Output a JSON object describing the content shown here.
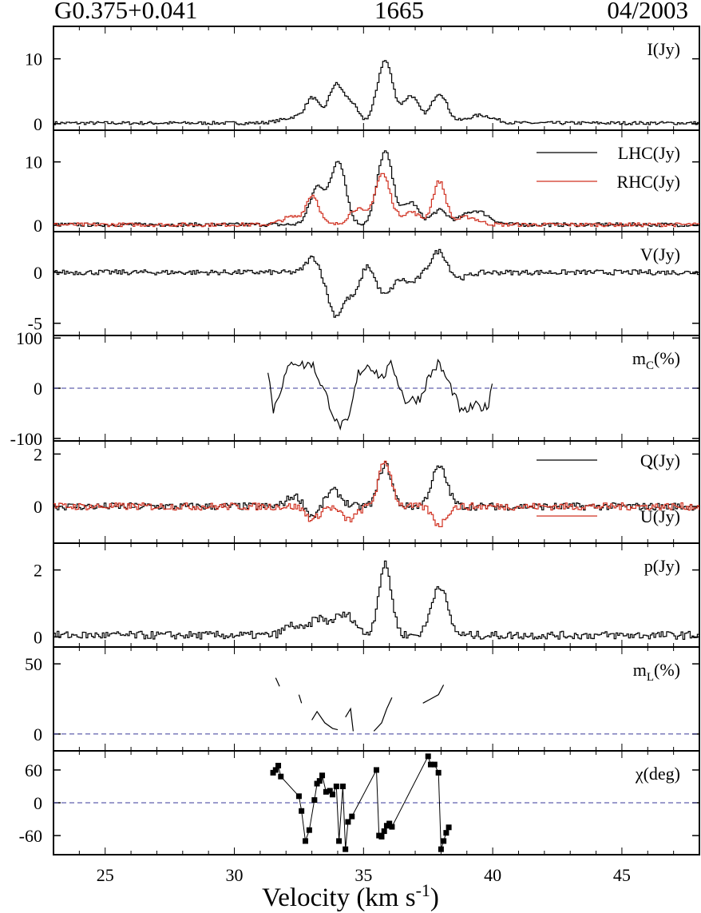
{
  "header": {
    "source": "G0.375+0.041",
    "frequency": "1665",
    "date": "04/2003"
  },
  "chart_data": {
    "type": "line",
    "xlabel": "Velocity (km s",
    "xlabel_sup": "-1",
    "xlabel_close": ")",
    "xlim": [
      23,
      48
    ],
    "xticks": [
      25,
      30,
      35,
      40,
      45
    ],
    "colors": {
      "primary": "#000000",
      "secondary": "#d03020",
      "zero": "#3a3a9a"
    },
    "panels": [
      {
        "id": "I",
        "label": "I(Jy)",
        "ylim": [
          -1,
          15
        ],
        "yticks": [
          0,
          10
        ],
        "series": [
          {
            "name": "I(Jy)",
            "color": "#000000",
            "base": 0.1,
            "noise": 0.25,
            "peaks": [
              [
                33.0,
                3.2,
                0.25
              ],
              [
                33.9,
                5.8,
                0.28
              ],
              [
                34.5,
                2.8,
                0.25
              ],
              [
                35.8,
                9.6,
                0.3
              ],
              [
                36.8,
                4.2,
                0.3
              ],
              [
                37.9,
                4.6,
                0.3
              ],
              [
                39.5,
                1.2,
                0.5
              ],
              [
                32.5,
                1.0,
                0.6
              ]
            ]
          }
        ]
      },
      {
        "id": "LHCRHC",
        "label": "",
        "ylim": [
          -1,
          15
        ],
        "yticks": [
          0,
          10
        ],
        "series": [
          {
            "name": "LHC(Jy)",
            "color": "#000000",
            "base": 0.1,
            "noise": 0.3,
            "peaks": [
              [
                33.2,
                6.0,
                0.3
              ],
              [
                34.0,
                10.0,
                0.28
              ],
              [
                35.8,
                11.5,
                0.3
              ],
              [
                36.8,
                3.5,
                0.3
              ],
              [
                37.9,
                2.2,
                0.3
              ],
              [
                39.3,
                2.2,
                0.5
              ]
            ]
          },
          {
            "name": "RHC(Jy)",
            "color": "#d03020",
            "base": 0.1,
            "noise": 0.3,
            "peaks": [
              [
                32.2,
                1.2,
                0.4
              ],
              [
                33.0,
                4.5,
                0.25
              ],
              [
                34.7,
                2.5,
                0.3
              ],
              [
                35.7,
                8.0,
                0.3
              ],
              [
                36.8,
                2.0,
                0.35
              ],
              [
                37.9,
                6.8,
                0.25
              ],
              [
                39.0,
                1.2,
                0.4
              ]
            ]
          }
        ]
      },
      {
        "id": "V",
        "label": "V(Jy)",
        "ylim": [
          -6.2,
          4.0
        ],
        "yticks": [
          -5,
          0
        ],
        "series": [
          {
            "name": "V(Jy)",
            "color": "#000000",
            "base": 0.0,
            "noise": 0.25,
            "peaks": [
              [
                33.0,
                1.5,
                0.25
              ],
              [
                33.9,
                -4.2,
                0.3
              ],
              [
                34.6,
                -2.0,
                0.25
              ],
              [
                35.1,
                1.0,
                0.2
              ],
              [
                35.8,
                -2.2,
                0.3
              ],
              [
                36.8,
                -1.0,
                0.3
              ],
              [
                37.9,
                2.2,
                0.3
              ],
              [
                38.6,
                -0.6,
                0.4
              ]
            ]
          }
        ]
      },
      {
        "id": "mc",
        "label": "m",
        "label_sub": "C",
        "label_close": "(%)",
        "ylim": [
          -105,
          105
        ],
        "yticks": [
          -100,
          0,
          100
        ],
        "zero": true,
        "series": [
          {
            "name": "m_C(%)",
            "color": "#000000",
            "xrange": [
              31.3,
              40.0
            ],
            "noise": 10,
            "keys": [
              [
                31.3,
                40
              ],
              [
                31.5,
                -45
              ],
              [
                32.0,
                30
              ],
              [
                32.3,
                55
              ],
              [
                32.7,
                45
              ],
              [
                33.0,
                50
              ],
              [
                33.6,
                -20
              ],
              [
                34.0,
                -75
              ],
              [
                34.4,
                -70
              ],
              [
                34.8,
                30
              ],
              [
                35.2,
                48
              ],
              [
                35.7,
                20
              ],
              [
                36.1,
                48
              ],
              [
                36.6,
                -25
              ],
              [
                37.2,
                -20
              ],
              [
                37.5,
                20
              ],
              [
                37.9,
                50
              ],
              [
                38.4,
                0
              ],
              [
                38.8,
                -50
              ],
              [
                39.3,
                -35
              ],
              [
                39.8,
                -40
              ],
              [
                40.0,
                20
              ]
            ]
          }
        ]
      },
      {
        "id": "QU",
        "label": "",
        "ylim": [
          -1.4,
          2.5
        ],
        "yticks": [
          0,
          2
        ],
        "series": [
          {
            "name": "Q(Jy)",
            "color": "#000000",
            "base": 0.0,
            "noise": 0.14,
            "peaks": [
              [
                32.3,
                0.4,
                0.3
              ],
              [
                33.0,
                -0.4,
                0.25
              ],
              [
                33.8,
                0.6,
                0.3
              ],
              [
                35.8,
                1.6,
                0.25
              ],
              [
                37.9,
                1.5,
                0.3
              ]
            ]
          },
          {
            "name": "U(Jy)",
            "color": "#d03020",
            "base": 0.0,
            "noise": 0.14,
            "peaks": [
              [
                33.0,
                -0.5,
                0.25
              ],
              [
                34.4,
                -0.5,
                0.3
              ],
              [
                35.8,
                1.7,
                0.25
              ],
              [
                37.9,
                -0.7,
                0.25
              ]
            ]
          }
        ]
      },
      {
        "id": "p",
        "label": "p(Jy)",
        "ylim": [
          -0.3,
          2.8
        ],
        "yticks": [
          0,
          2
        ],
        "series": [
          {
            "name": "p(Jy)",
            "color": "#000000",
            "base": 0.05,
            "noise": 0.12,
            "peaks": [
              [
                32.2,
                0.3,
                0.3
              ],
              [
                33.2,
                0.5,
                0.3
              ],
              [
                34.0,
                0.5,
                0.3
              ],
              [
                34.5,
                0.4,
                0.25
              ],
              [
                35.8,
                2.1,
                0.25
              ],
              [
                37.9,
                1.5,
                0.3
              ]
            ]
          }
        ]
      },
      {
        "id": "mL",
        "label": "m",
        "label_sub": "L",
        "label_close": "(%)",
        "ylim": [
          -12,
          62
        ],
        "yticks": [
          0,
          50
        ],
        "zero": true,
        "segments": [
          [
            [
              31.6,
              40
            ],
            [
              31.75,
              34
            ]
          ],
          [
            [
              32.5,
              28
            ],
            [
              32.6,
              22
            ]
          ],
          [
            [
              33.0,
              10
            ],
            [
              33.2,
              16
            ],
            [
              33.5,
              8
            ],
            [
              33.8,
              4
            ],
            [
              34.0,
              3
            ]
          ],
          [
            [
              34.3,
              12
            ],
            [
              34.5,
              18
            ],
            [
              34.6,
              2
            ]
          ],
          [
            [
              35.4,
              2
            ],
            [
              35.7,
              8
            ],
            [
              35.9,
              18
            ],
            [
              36.1,
              26
            ]
          ],
          [
            [
              37.3,
              22
            ],
            [
              37.6,
              25
            ],
            [
              37.9,
              28
            ],
            [
              38.1,
              35
            ]
          ]
        ]
      },
      {
        "id": "chi",
        "label": "χ(deg)",
        "ylim": [
          -95,
          95
        ],
        "yticks": [
          -60,
          0,
          60
        ],
        "zero": true,
        "markers": true,
        "points": [
          [
            31.5,
            55
          ],
          [
            31.6,
            60
          ],
          [
            31.7,
            68
          ],
          [
            31.8,
            48
          ],
          [
            32.5,
            12
          ],
          [
            32.6,
            -15
          ],
          [
            32.75,
            -70
          ],
          [
            32.9,
            -50
          ],
          [
            33.1,
            5
          ],
          [
            33.2,
            35
          ],
          [
            33.3,
            40
          ],
          [
            33.4,
            50
          ],
          [
            33.55,
            20
          ],
          [
            33.7,
            22
          ],
          [
            33.8,
            15
          ],
          [
            33.95,
            30
          ],
          [
            34.05,
            -70
          ],
          [
            34.2,
            30
          ],
          [
            34.3,
            -85
          ],
          [
            34.4,
            -35
          ],
          [
            34.55,
            -25
          ],
          [
            35.5,
            60
          ],
          [
            35.6,
            -60
          ],
          [
            35.7,
            -62
          ],
          [
            35.8,
            -52
          ],
          [
            35.9,
            -42
          ],
          [
            36.0,
            -38
          ],
          [
            36.1,
            -44
          ],
          [
            37.5,
            85
          ],
          [
            37.6,
            70
          ],
          [
            37.75,
            70
          ],
          [
            37.9,
            55
          ],
          [
            38.0,
            -85
          ],
          [
            38.1,
            -70
          ],
          [
            38.2,
            -55
          ],
          [
            38.3,
            -45
          ]
        ]
      }
    ]
  }
}
